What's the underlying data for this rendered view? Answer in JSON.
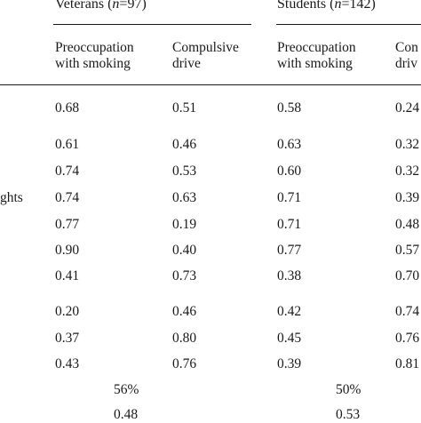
{
  "groups": [
    {
      "label": "Veterans (",
      "var": "n",
      "count": "=97)"
    },
    {
      "label": "Students (",
      "var": "n",
      "count": "=142)"
    }
  ],
  "columns": [
    {
      "line1": "Preoccupation",
      "line2": "with smoking"
    },
    {
      "line1": "Compulsive",
      "line2": "drive"
    },
    {
      "line1": "Preoccupation",
      "line2": "with smoking"
    },
    {
      "line1": "Con",
      "line2": "driv"
    }
  ],
  "row_label_fragment": "ghts",
  "rows": [
    [
      "0.68",
      "0.51",
      "0.58",
      "0.24"
    ],
    [
      "0.61",
      "0.46",
      "0.63",
      "0.32"
    ],
    [
      "0.74",
      "0.53",
      "0.60",
      "0.32"
    ],
    [
      "0.74",
      "0.63",
      "0.71",
      "0.39"
    ],
    [
      "0.77",
      "0.19",
      "0.71",
      "0.48"
    ],
    [
      "0.90",
      "0.40",
      "0.77",
      "0.57"
    ],
    [
      "0.41",
      "0.73",
      "0.38",
      "0.70"
    ],
    [
      "0.20",
      "0.46",
      "0.42",
      "0.74"
    ],
    [
      "0.37",
      "0.80",
      "0.45",
      "0.76"
    ],
    [
      "0.43",
      "0.76",
      "0.39",
      "0.81"
    ]
  ],
  "summary": [
    [
      "56%",
      "50%"
    ],
    [
      "0.48",
      "0.53"
    ]
  ]
}
